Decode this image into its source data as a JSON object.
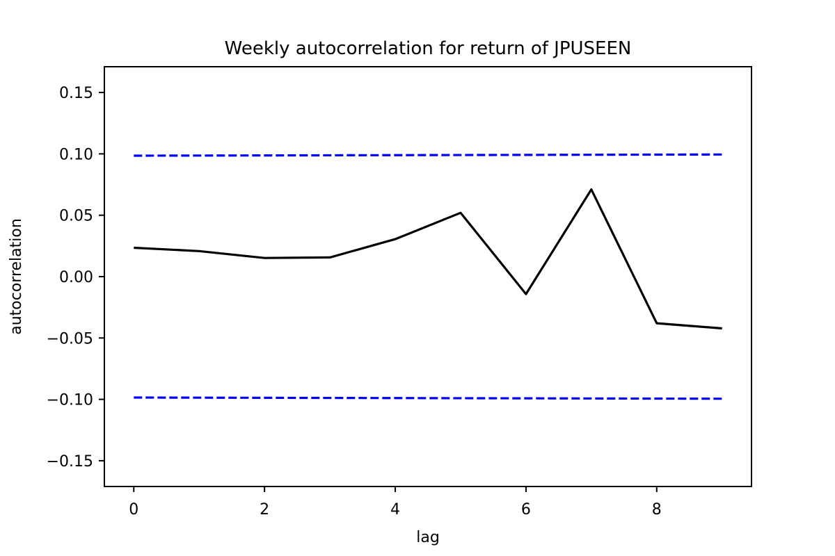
{
  "chart_data": {
    "type": "line",
    "title": "Weekly autocorrelation for  return of JPUSEEN",
    "xlabel": "lag",
    "ylabel": "autocorrelation",
    "xlim": [
      -0.45,
      9.45
    ],
    "ylim": [
      -0.171,
      0.171
    ],
    "xticks": [
      0,
      2,
      4,
      6,
      8
    ],
    "yticks": [
      0.15,
      0.1,
      0.05,
      0.0,
      -0.05,
      -0.1,
      -0.15
    ],
    "ytick_labels": [
      "0.15",
      "0.10",
      "0.05",
      "0.00",
      "−0.05",
      "−0.10",
      "−0.15"
    ],
    "grid": false,
    "series": [
      {
        "style": "solid",
        "color": "#000000",
        "x": [
          0,
          1,
          2,
          3,
          4,
          5,
          6,
          7,
          8,
          9
        ],
        "values": [
          0.0235,
          0.0208,
          0.0152,
          0.0156,
          0.0305,
          0.052,
          -0.0142,
          0.071,
          -0.038,
          -0.0422
        ]
      },
      {
        "style": "dashed",
        "color": "#0000ee",
        "x": [
          0,
          9
        ],
        "values": [
          0.0985,
          0.0995
        ]
      },
      {
        "style": "dashed",
        "color": "#0000ee",
        "x": [
          0,
          9
        ],
        "values": [
          -0.0985,
          -0.0995
        ]
      }
    ]
  }
}
